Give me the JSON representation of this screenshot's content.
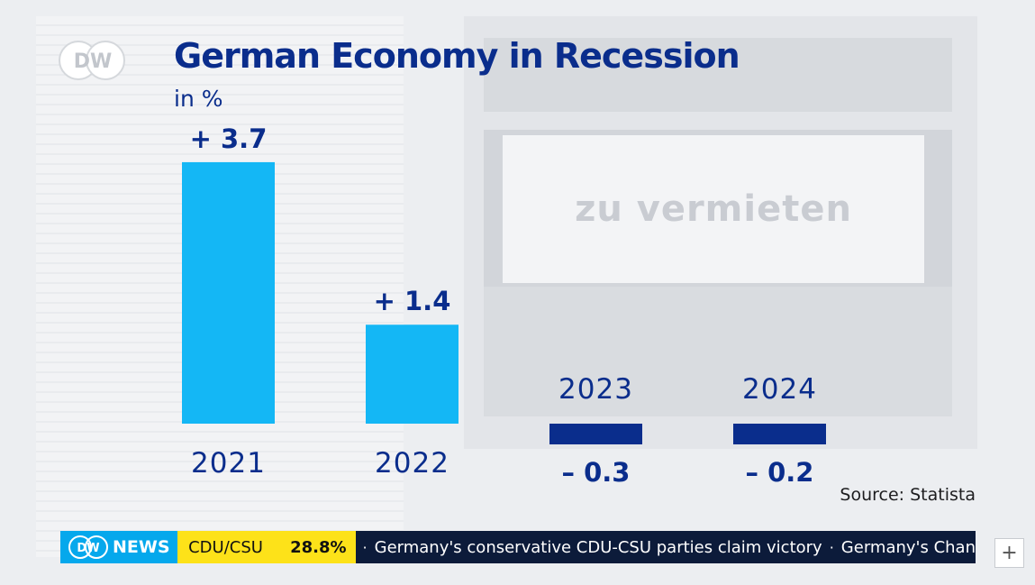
{
  "header": {
    "logo_text": "DW",
    "title": "German Economy in Recession",
    "subtitle": "in %"
  },
  "background": {
    "sign_text": "zu vermieten"
  },
  "source": "Source: Statista",
  "colors": {
    "positive": "#14b7f5",
    "negative": "#0a2d8c",
    "title": "#0a2d8c"
  },
  "chart_data": {
    "type": "bar",
    "title": "German Economy in Recession",
    "ylabel": "in %",
    "categories": [
      "2021",
      "2022",
      "2023",
      "2024"
    ],
    "values": [
      3.7,
      1.4,
      -0.3,
      -0.2
    ],
    "labels": [
      "+ 3.7",
      "+ 1.4",
      "– 0.3",
      "– 0.2"
    ],
    "source": "Source: Statista"
  },
  "ticker": {
    "brand": "NEWS",
    "brand_logo": "DW",
    "party": "CDU/CSU",
    "percent": "28.8%",
    "headlines": [
      "Germany's conservative CDU-CSU parties claim victory",
      "Germany's Chan"
    ]
  },
  "controls": {
    "plus_icon": "plus-icon"
  }
}
